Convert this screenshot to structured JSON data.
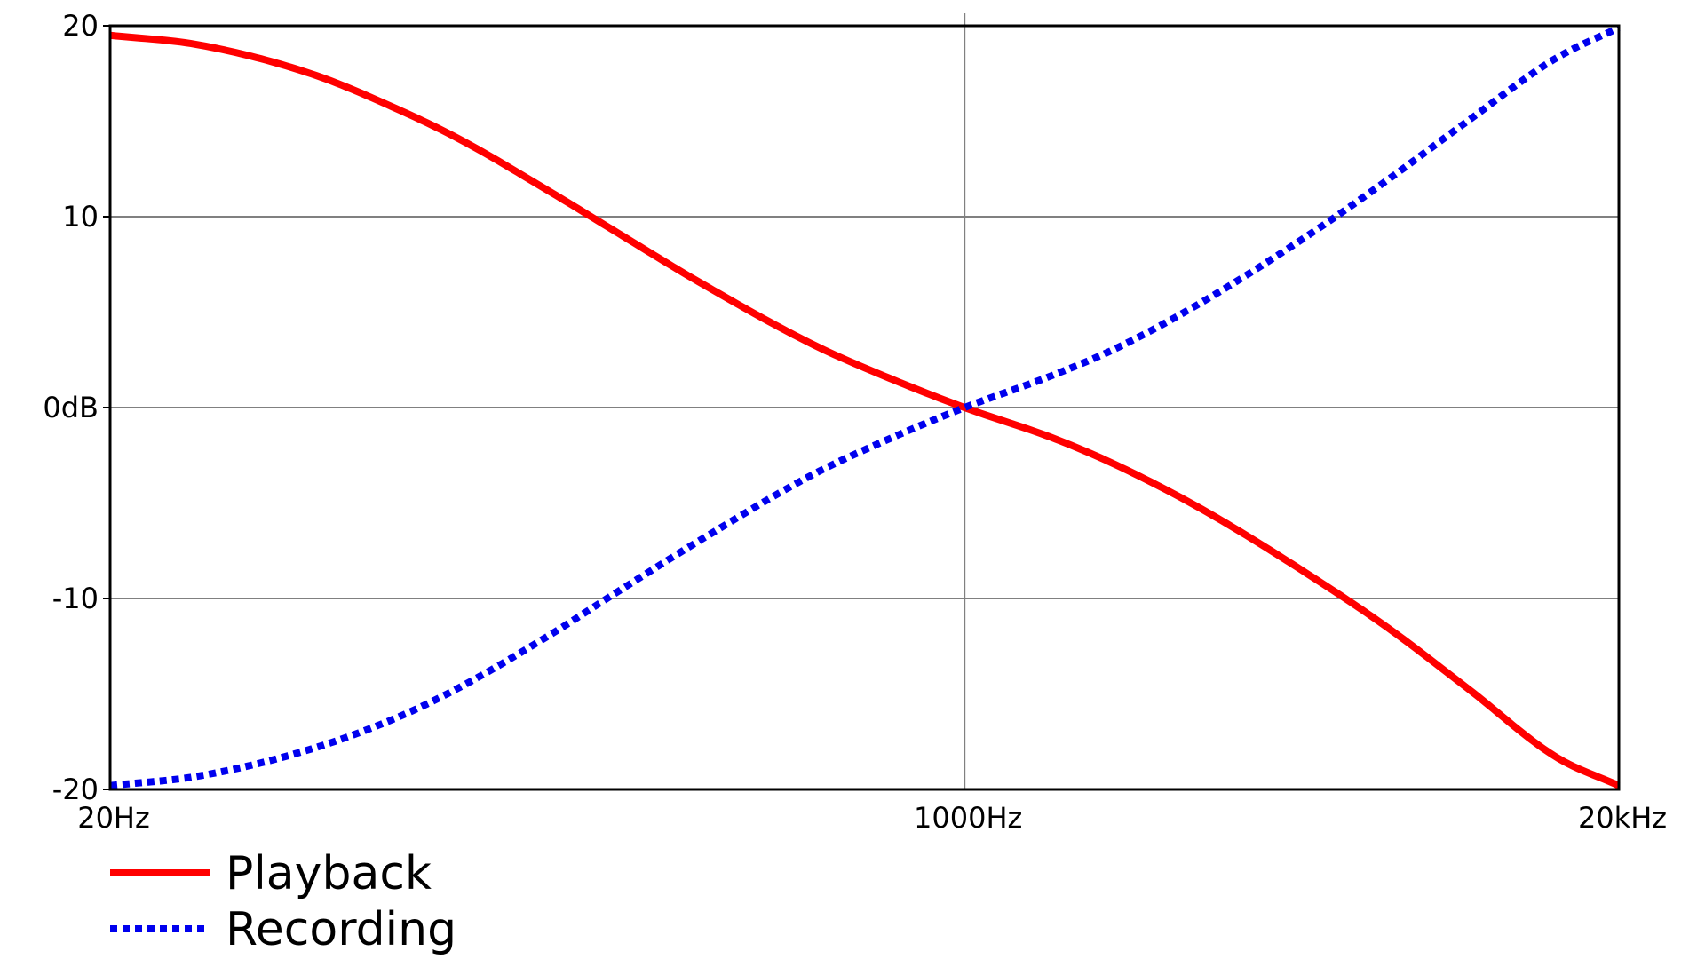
{
  "chart_data": {
    "type": "line",
    "title": "",
    "xlabel": "",
    "ylabel": "",
    "x_scale": "log",
    "xlim": [
      20,
      20000
    ],
    "ylim": [
      -20,
      20
    ],
    "grid": true,
    "x_ticks": [
      {
        "value": 20,
        "label": "20Hz"
      },
      {
        "value": 1000,
        "label": "1000Hz"
      },
      {
        "value": 20000,
        "label": "20kHz"
      }
    ],
    "y_ticks": [
      {
        "value": 20,
        "label": "20"
      },
      {
        "value": 10,
        "label": "10"
      },
      {
        "value": 0,
        "label": "0dB"
      },
      {
        "value": -10,
        "label": "-10"
      },
      {
        "value": -20,
        "label": "-20"
      }
    ],
    "legend_position": "bottom-left",
    "series": [
      {
        "name": "Playback",
        "color": "#ff0000",
        "line_style": "solid",
        "x": [
          20,
          30,
          50,
          75,
          100,
          150,
          200,
          300,
          500,
          700,
          1000,
          1500,
          2000,
          3000,
          5000,
          7000,
          10000,
          15000,
          20000
        ],
        "y": [
          19.5,
          19.0,
          17.5,
          15.6,
          14.0,
          11.3,
          9.3,
          6.5,
          3.3,
          1.6,
          0.0,
          -1.6,
          -3.0,
          -5.4,
          -9.0,
          -11.6,
          -14.7,
          -18.3,
          -19.8
        ]
      },
      {
        "name": "Recording",
        "color": "#0000ee",
        "line_style": "dotted",
        "x": [
          20,
          30,
          50,
          75,
          100,
          150,
          200,
          300,
          500,
          700,
          1000,
          1500,
          2000,
          3000,
          5000,
          7000,
          10000,
          15000,
          20000
        ],
        "y": [
          -19.8,
          -19.3,
          -17.9,
          -16.2,
          -14.6,
          -11.9,
          -9.8,
          -6.9,
          -3.5,
          -1.7,
          0.0,
          1.7,
          3.1,
          5.6,
          9.3,
          12.0,
          15.0,
          18.3,
          19.9
        ]
      }
    ]
  }
}
